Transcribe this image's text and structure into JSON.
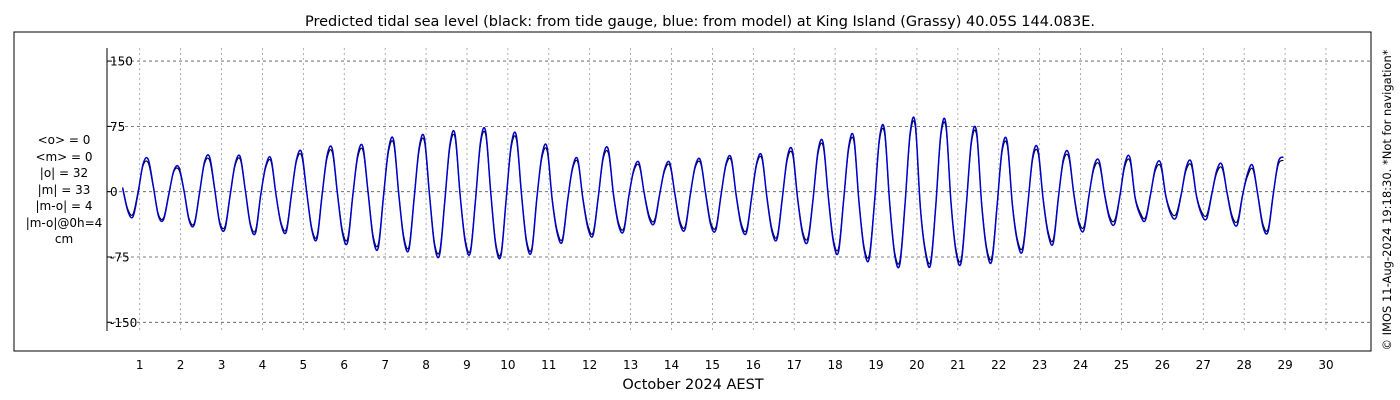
{
  "copyright": "© IMOS 11-Aug-2024 19:18:30. *Not for navigation*",
  "stats": [
    "<o> = 0",
    "<m> = 0",
    "|o| = 32",
    "|m| = 33",
    "|m-o| = 4",
    "|m-o|@0h=4",
    "cm"
  ],
  "chart_data": {
    "type": "line",
    "title": "Predicted tidal sea level (black: from tide gauge, blue: from model) at King Island (Grassy) 40.05S 144.083E.",
    "xlabel": "October 2024 AEST",
    "ylabel": "",
    "xlim": [
      0.2,
      31.1
    ],
    "ylim": [
      -160,
      165
    ],
    "yticks": [
      150,
      75,
      0,
      -75,
      -150
    ],
    "ytick_labels": [
      "150",
      "75",
      "0",
      "-75",
      "-150"
    ],
    "xticks": [
      1,
      2,
      3,
      4,
      5,
      6,
      7,
      8,
      9,
      10,
      11,
      12,
      13,
      14,
      15,
      16,
      17,
      18,
      19,
      20,
      21,
      22,
      23,
      24,
      25,
      26,
      27,
      28,
      29,
      30
    ],
    "xtick_labels": [
      "1",
      "2",
      "3",
      "4",
      "5",
      "6",
      "7",
      "8",
      "9",
      "10",
      "11",
      "12",
      "13",
      "14",
      "15",
      "16",
      "17",
      "18",
      "19",
      "20",
      "21",
      "22",
      "23",
      "24",
      "25",
      "26",
      "27",
      "28",
      "29",
      "30"
    ],
    "grid": true,
    "series": [
      {
        "color": "#000000",
        "step_hours": 3,
        "x_start": 0.583,
        "values": [
          5,
          -20,
          -26,
          0,
          30,
          33,
          5,
          -26,
          -30,
          -3,
          23,
          25,
          1,
          -31,
          -36,
          -2,
          32,
          36,
          2,
          -35,
          -40,
          -4,
          30,
          37,
          1,
          -37,
          -44,
          -3,
          28,
          35,
          -4,
          -36,
          -43,
          -3,
          35,
          41,
          -1,
          -42,
          -51,
          -3,
          39,
          45,
          -2,
          -45,
          -54,
          -4,
          40,
          47,
          -1,
          -51,
          -60,
          -5,
          46,
          55,
          -3,
          -52,
          -63,
          -7,
          48,
          58,
          -3,
          -59,
          -68,
          -10,
          51,
          62,
          -4,
          -55,
          -67,
          -9,
          55,
          65,
          -2,
          -60,
          -70,
          -8,
          51,
          60,
          -3,
          -56,
          -65,
          -7,
          39,
          47,
          -8,
          -45,
          -54,
          -10,
          26,
          34,
          -7,
          -39,
          -47,
          -6,
          38,
          44,
          -3,
          -36,
          -42,
          -4,
          24,
          30,
          -1,
          -28,
          -33,
          -3,
          24,
          30,
          -2,
          -34,
          -40,
          -3,
          28,
          33,
          -1,
          -35,
          -41,
          -4,
          30,
          36,
          -4,
          -37,
          -44,
          -6,
          31,
          38,
          -6,
          -43,
          -51,
          -7,
          37,
          43,
          -7,
          -46,
          -53,
          -9,
          44,
          52,
          -5,
          -55,
          -65,
          -9,
          49,
          58,
          -11,
          -63,
          -73,
          -14,
          58,
          67,
          -12,
          -70,
          -79,
          -14,
          64,
          75,
          -17,
          -67,
          -80,
          -17,
          63,
          74,
          -12,
          -67,
          -77,
          -14,
          56,
          65,
          -14,
          -65,
          -75,
          -16,
          46,
          53,
          -14,
          -55,
          -64,
          -15,
          38,
          45,
          -7,
          -46,
          -55,
          -6,
          35,
          40,
          -1,
          -34,
          -40,
          -3,
          27,
          31,
          -1,
          -28,
          -33,
          -5,
          29,
          35,
          -6,
          -24,
          -30,
          -3,
          25,
          29,
          -4,
          -23,
          -26,
          -3,
          25,
          30,
          -4,
          -23,
          -27,
          -2,
          22,
          27,
          -1,
          -28,
          -34,
          -4,
          18,
          26,
          -3,
          -37,
          -43,
          -3,
          31,
          36
        ]
      },
      {
        "color": "#0000cc",
        "step_hours": 3,
        "x_start": 0.583,
        "values": [
          4,
          -22,
          -29,
          -2,
          32,
          37,
          6,
          -28,
          -32,
          -4,
          24,
          28,
          1,
          -33,
          -38,
          -3,
          34,
          40,
          3,
          -37,
          -43,
          -5,
          32,
          40,
          1,
          -39,
          -47,
          -4,
          30,
          38,
          -4,
          -38,
          -46,
          -4,
          37,
          45,
          -1,
          -44,
          -54,
          -4,
          42,
          49,
          -2,
          -48,
          -58,
          -5,
          43,
          51,
          -1,
          -54,
          -64,
          -6,
          49,
          59,
          -3,
          -55,
          -66,
          -8,
          51,
          62,
          -3,
          -62,
          -72,
          -11,
          54,
          66,
          -4,
          -58,
          -70,
          -10,
          58,
          69,
          -2,
          -63,
          -73,
          -9,
          54,
          64,
          -3,
          -59,
          -68,
          -8,
          42,
          51,
          -9,
          -48,
          -57,
          -11,
          28,
          37,
          -8,
          -42,
          -50,
          -7,
          41,
          48,
          -4,
          -39,
          -45,
          -5,
          26,
          33,
          -2,
          -31,
          -36,
          -4,
          26,
          33,
          -3,
          -37,
          -43,
          -4,
          30,
          36,
          -2,
          -38,
          -44,
          -5,
          32,
          39,
          -5,
          -40,
          -47,
          -7,
          33,
          41,
          -7,
          -46,
          -54,
          -8,
          40,
          47,
          -8,
          -49,
          -57,
          -10,
          47,
          56,
          -6,
          -58,
          -69,
          -10,
          52,
          62,
          -12,
          -66,
          -77,
          -15,
          61,
          71,
          -13,
          -73,
          -83,
          -15,
          67,
          79,
          -18,
          -70,
          -84,
          -18,
          66,
          78,
          -13,
          -70,
          -81,
          -15,
          59,
          69,
          -15,
          -68,
          -79,
          -17,
          49,
          57,
          -15,
          -58,
          -68,
          -16,
          41,
          49,
          -8,
          -49,
          -59,
          -7,
          38,
          44,
          -2,
          -37,
          -44,
          -4,
          30,
          35,
          -2,
          -31,
          -37,
          -6,
          32,
          39,
          -7,
          -27,
          -33,
          -4,
          28,
          33,
          -5,
          -26,
          -30,
          -4,
          28,
          34,
          -5,
          -26,
          -31,
          -3,
          25,
          31,
          -2,
          -31,
          -38,
          -5,
          21,
          30,
          -4,
          -40,
          -46,
          -4,
          34,
          40
        ]
      }
    ]
  }
}
